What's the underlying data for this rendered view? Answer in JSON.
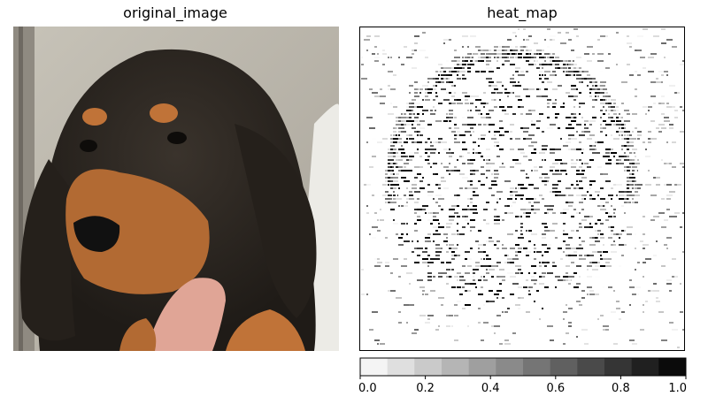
{
  "panels": {
    "left_title": "original_image",
    "right_title": "heat_map"
  },
  "chart_data": [
    {
      "type": "image",
      "title": "original_image",
      "content": "photo of a black-and-tan puppy held by a hand"
    },
    {
      "type": "heatmap",
      "title": "heat_map",
      "colormap": "grayscale (white = 0.0, black = 1.0)",
      "colorbar": {
        "min": 0.0,
        "max": 1.0,
        "ticks": [
          0.0,
          0.2,
          0.4,
          0.6,
          0.8,
          1.0
        ],
        "tick_labels": [
          "0.0",
          "0.2",
          "0.4",
          "0.6",
          "0.8",
          "1.0"
        ],
        "levels": 12
      }
    }
  ],
  "colors": {
    "dog_black": "#2b2621",
    "dog_tan": "#b26a33",
    "background_wall": "#b8b3a8",
    "finger": "#dc9d8e"
  }
}
